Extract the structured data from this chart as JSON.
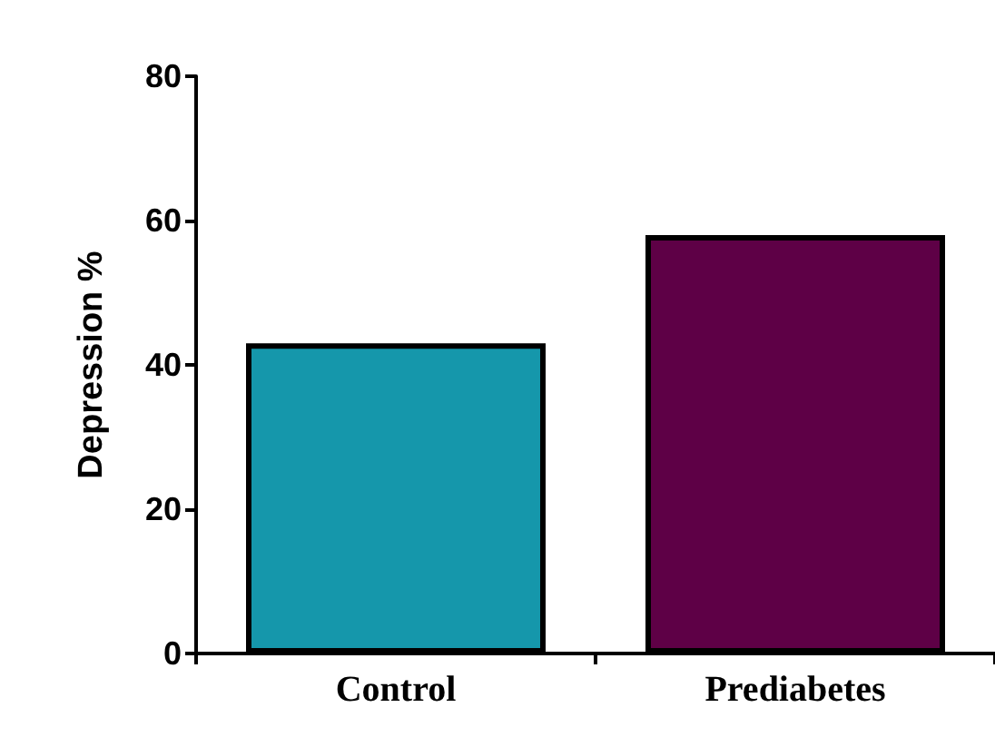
{
  "chart_data": {
    "type": "bar",
    "ylabel": "Depression %",
    "categories": [
      "Control",
      "Prediabetes"
    ],
    "values": [
      43,
      58
    ],
    "colors": [
      "#1597ab",
      "#5e0046"
    ],
    "ylim": [
      0,
      80
    ],
    "yticks": [
      0,
      20,
      40,
      60,
      80
    ],
    "grid": false
  }
}
